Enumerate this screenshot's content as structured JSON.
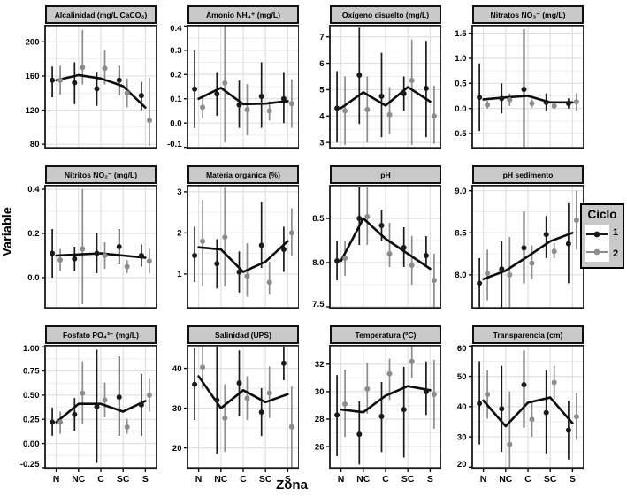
{
  "figure": {
    "background": "#ffffff",
    "strip_bg": "#c9c9c9",
    "grid_major_color": "#e0e0e0",
    "grid_minor_color": "#eeeeee",
    "panel_border_color": "#1a1a1a"
  },
  "chart_data": {
    "type": "faceted pointrange + line (means with error bars by zone and cycle)",
    "xlabel": "Zona",
    "ylabel": "Variable",
    "categories": [
      "N",
      "NC",
      "C",
      "SC",
      "S"
    ],
    "legend": {
      "title": "Ciclo",
      "position": "right",
      "items": [
        {
          "label": "1",
          "color": "#1a1a1a"
        },
        {
          "label": "2",
          "color": "#8c8c8c"
        }
      ]
    },
    "facets": [
      {
        "title": "Alcalinidad (mg/L CaCO₃)",
        "ylim": [
          75,
          220
        ],
        "yticks": [
          80,
          120,
          160,
          200
        ],
        "ytick_labels": [
          "80",
          "120",
          "160",
          "200"
        ],
        "series": [
          {
            "name": "1",
            "values": [
              155,
              152,
              145,
              155,
              137
            ],
            "lo": [
              135,
              127,
              125,
              137,
              120
            ],
            "hi": [
              171,
              176,
              165,
              172,
              153
            ]
          },
          {
            "name": "2",
            "values": [
              155,
              170,
              169,
              140,
              108
            ],
            "lo": [
              138,
              150,
              150,
              123,
              78
            ],
            "hi": [
              172,
              214,
              190,
              157,
              158
            ]
          }
        ],
        "line": [
          155,
          161,
          157,
          148,
          123
        ]
      },
      {
        "title": "Amonio NH₄⁺ (mg/L)",
        "ylim": [
          -0.105,
          0.405
        ],
        "yticks": [
          -0.1,
          0.0,
          0.1,
          0.2,
          0.3,
          0.4
        ],
        "ytick_labels": [
          "-0.1",
          "0.0",
          "0.1",
          "0.2",
          "0.3",
          "0.4"
        ],
        "series": [
          {
            "name": "1",
            "values": [
              0.14,
              0.12,
              0.075,
              0.11,
              0.1
            ],
            "lo": [
              -0.02,
              0.03,
              -0.02,
              -0.02,
              0.0
            ],
            "hi": [
              0.3,
              0.21,
              0.175,
              0.25,
              0.21
            ]
          },
          {
            "name": "2",
            "values": [
              0.065,
              0.165,
              0.055,
              0.05,
              0.08
            ],
            "lo": [
              0.02,
              -0.08,
              -0.05,
              0.01,
              -0.02
            ],
            "hi": [
              0.11,
              0.41,
              0.16,
              0.09,
              0.18
            ]
          }
        ],
        "line": [
          0.1,
          0.145,
          0.078,
          0.08,
          0.09
        ]
      },
      {
        "title": "Oxígeno disuelto (mg/L)",
        "ylim": [
          2.77,
          7.46
        ],
        "yticks": [
          3,
          4,
          5,
          6,
          7
        ],
        "ytick_labels": [
          "3",
          "4",
          "5",
          "6",
          "7"
        ],
        "series": [
          {
            "name": "1",
            "values": [
              4.3,
              5.55,
              4.75,
              4.85,
              5.05
            ],
            "lo": [
              3.0,
              3.7,
              3.2,
              4.2,
              3.2
            ],
            "hi": [
              5.7,
              7.35,
              6.4,
              5.5,
              6.85
            ]
          },
          {
            "name": "2",
            "values": [
              4.2,
              4.25,
              4.05,
              5.35,
              4.0
            ],
            "lo": [
              2.9,
              3.0,
              3.3,
              2.9,
              2.95
            ],
            "hi": [
              5.5,
              5.5,
              5.1,
              6.9,
              5.15
            ]
          }
        ],
        "line": [
          4.3,
          4.9,
          4.4,
          5.1,
          4.55
        ]
      },
      {
        "title": "Nitratos NO₃⁻ (mg/L)",
        "ylim": [
          -0.8,
          1.67
        ],
        "yticks": [
          -0.5,
          0.0,
          0.5,
          1.0,
          1.5
        ],
        "ytick_labels": [
          "-0.5",
          "0.0",
          "0.5",
          "1.0",
          "1.5"
        ],
        "series": [
          {
            "name": "1",
            "values": [
              0.22,
              0.2,
              0.38,
              0.12,
              0.1
            ],
            "lo": [
              -0.45,
              -0.1,
              -0.78,
              -0.05,
              0.0
            ],
            "hi": [
              0.9,
              0.5,
              1.58,
              0.3,
              0.2
            ]
          },
          {
            "name": "2",
            "values": [
              0.07,
              0.17,
              0.1,
              0.05,
              0.13
            ],
            "lo": [
              0.0,
              0.05,
              0.02,
              0.0,
              -0.05
            ],
            "hi": [
              0.15,
              0.3,
              0.18,
              0.1,
              0.3
            ]
          }
        ],
        "line": [
          0.18,
          0.22,
          0.25,
          0.12,
          0.12
        ]
      },
      {
        "title": "Nitritos NO₂⁻ (mg/L)",
        "ylim": [
          -0.14,
          0.42
        ],
        "yticks": [
          0.0,
          0.2,
          0.4
        ],
        "ytick_labels": [
          "0.0",
          "0.2",
          "0.4"
        ],
        "series": [
          {
            "name": "1",
            "values": [
              0.11,
              0.085,
              0.11,
              0.14,
              0.1
            ],
            "lo": [
              0.0,
              0.03,
              0.02,
              0.06,
              0.05
            ],
            "hi": [
              0.22,
              0.14,
              0.2,
              0.22,
              0.15
            ]
          },
          {
            "name": "2",
            "values": [
              0.08,
              0.13,
              0.1,
              0.05,
              0.075
            ],
            "lo": [
              0.03,
              -0.12,
              0.04,
              0.02,
              0.02
            ],
            "hi": [
              0.13,
              0.4,
              0.16,
              0.08,
              0.13
            ]
          }
        ],
        "line": [
          0.1,
          0.105,
          0.11,
          0.1,
          0.09
        ]
      },
      {
        "title": "Materia orgánica (%)",
        "ylim": [
          0.16,
          3.17
        ],
        "yticks": [
          1,
          2,
          3
        ],
        "ytick_labels": [
          "1",
          "2",
          "3"
        ],
        "series": [
          {
            "name": "1",
            "values": [
              1.45,
              1.25,
              1.05,
              1.7,
              1.6
            ],
            "lo": [
              0.8,
              0.65,
              0.55,
              1.15,
              1.05
            ],
            "hi": [
              2.15,
              1.85,
              1.55,
              2.75,
              2.15
            ]
          },
          {
            "name": "2",
            "values": [
              1.8,
              1.9,
              0.95,
              0.8,
              2.0
            ],
            "lo": [
              0.7,
              0.7,
              0.45,
              0.5,
              1.45
            ],
            "hi": [
              2.8,
              3.1,
              1.75,
              1.3,
              2.6
            ]
          }
        ],
        "line": [
          1.65,
          1.6,
          1.05,
          1.3,
          1.8
        ]
      },
      {
        "title": "pH",
        "ylim": [
          7.48,
          8.88
        ],
        "yticks": [
          7.5,
          8.0,
          8.5
        ],
        "ytick_labels": [
          "7.5",
          "8.0",
          "8.5"
        ],
        "series": [
          {
            "name": "1",
            "values": [
              8.02,
              8.5,
              8.42,
              8.17,
              8.08
            ],
            "lo": [
              7.8,
              8.2,
              8.25,
              7.95,
              7.95
            ],
            "hi": [
              8.25,
              8.85,
              8.6,
              8.4,
              8.3
            ]
          },
          {
            "name": "2",
            "values": [
              8.05,
              8.52,
              8.1,
              7.97,
              7.8
            ],
            "lo": [
              7.85,
              8.2,
              7.95,
              7.75,
              7.45
            ],
            "hi": [
              8.25,
              8.85,
              8.45,
              8.3,
              8.1
            ]
          }
        ],
        "line": [
          8.02,
          8.5,
          8.27,
          8.1,
          7.93
        ]
      },
      {
        "title": "pH sedimento",
        "ylim": [
          7.6,
          9.07
        ],
        "yticks": [
          8.0,
          8.5,
          9.0
        ],
        "ytick_labels": [
          "8.0",
          "8.5",
          "9.0"
        ],
        "series": [
          {
            "name": "1",
            "values": [
              7.9,
              8.07,
              8.32,
              8.48,
              8.37
            ],
            "lo": [
              7.55,
              7.6,
              7.9,
              8.2,
              7.9
            ],
            "hi": [
              8.2,
              8.4,
              8.75,
              8.7,
              8.85
            ]
          },
          {
            "name": "2",
            "values": [
              8.02,
              8.0,
              8.14,
              8.28,
              8.65
            ],
            "lo": [
              7.7,
              7.55,
              7.95,
              8.2,
              8.3
            ],
            "hi": [
              8.3,
              8.45,
              8.35,
              8.38,
              9.0
            ]
          }
        ],
        "line": [
          7.95,
          8.05,
          8.22,
          8.4,
          8.5
        ]
      },
      {
        "title": "Fosfato PO₄³⁻ (mg/L)",
        "ylim": [
          -0.26,
          1.02
        ],
        "yticks": [
          -0.25,
          0.0,
          0.25,
          0.5,
          0.75,
          1.0
        ],
        "ytick_labels": [
          "-0.25",
          "0.00",
          "0.25",
          "0.50",
          "0.75",
          "1.00"
        ],
        "series": [
          {
            "name": "1",
            "values": [
              0.22,
              0.3,
              0.38,
              0.48,
              0.4
            ],
            "lo": [
              0.08,
              0.13,
              -0.2,
              0.08,
              0.08
            ],
            "hi": [
              0.37,
              0.47,
              0.97,
              0.9,
              0.72
            ]
          },
          {
            "name": "2",
            "values": [
              0.22,
              0.52,
              0.45,
              0.17,
              0.5
            ],
            "lo": [
              0.1,
              0.2,
              0.27,
              0.1,
              0.33
            ],
            "hi": [
              0.33,
              0.85,
              0.63,
              0.25,
              0.67
            ]
          }
        ],
        "line": [
          0.22,
          0.41,
          0.41,
          0.33,
          0.44
        ]
      },
      {
        "title": "Salinidad (UPS)",
        "ylim": [
          14.8,
          45.9
        ],
        "yticks": [
          20,
          30,
          40
        ],
        "ytick_labels": [
          "20",
          "30",
          "40"
        ],
        "series": [
          {
            "name": "1",
            "values": [
              36.0,
              32.0,
              36.3,
              29.0,
              41.3
            ],
            "lo": [
              27.0,
              18.5,
              28.0,
              23.0,
              37.0
            ],
            "hi": [
              45.0,
              45.5,
              44.5,
              35.0,
              45.5
            ]
          },
          {
            "name": "2",
            "values": [
              40.3,
              27.5,
              32.5,
              33.8,
              25.3
            ],
            "lo": [
              35.0,
              19.0,
              27.0,
              27.5,
              15.0
            ],
            "hi": [
              45.5,
              36.0,
              38.0,
              40.5,
              35.5
            ]
          }
        ],
        "line": [
          38.0,
          30.0,
          34.5,
          31.5,
          33.5
        ]
      },
      {
        "title": "Temperatura (ºC)",
        "ylim": [
          24.4,
          33.4
        ],
        "yticks": [
          26,
          28,
          30,
          32
        ],
        "ytick_labels": [
          "26",
          "28",
          "30",
          "32"
        ],
        "series": [
          {
            "name": "1",
            "values": [
              28.3,
              26.9,
              28.2,
              28.7,
              30.0
            ],
            "lo": [
              25.3,
              24.7,
              25.6,
              25.2,
              28.3
            ],
            "hi": [
              31.2,
              29.3,
              30.7,
              31.8,
              32.2
            ]
          },
          {
            "name": "2",
            "values": [
              29.1,
              30.2,
              31.3,
              32.2,
              29.8
            ],
            "lo": [
              26.7,
              28.4,
              29.4,
              31.0,
              27.3
            ],
            "hi": [
              31.6,
              32.1,
              32.4,
              33.4,
              32.3
            ]
          }
        ],
        "line": [
          28.7,
          28.5,
          29.7,
          30.4,
          30.1
        ]
      },
      {
        "title": "Transparencia (cm)",
        "ylim": [
          19.5,
          60.4
        ],
        "yticks": [
          20,
          30,
          40,
          50,
          60
        ],
        "ytick_labels": [
          "20",
          "30",
          "40",
          "50",
          "60"
        ],
        "series": [
          {
            "name": "1",
            "values": [
              41.0,
              39.3,
              47.2,
              38.0,
              32.2
            ],
            "lo": [
              27.5,
              25.0,
              33.0,
              24.5,
              22.5
            ],
            "hi": [
              55.0,
              53.5,
              58.5,
              52.0,
              42.0
            ]
          },
          {
            "name": "2",
            "values": [
              44.0,
              27.5,
              35.8,
              48.0,
              36.7
            ],
            "lo": [
              36.0,
              20.0,
              30.0,
              42.5,
              29.0
            ],
            "hi": [
              52.0,
              45.0,
              41.5,
              53.5,
              44.5
            ]
          }
        ],
        "line": [
          42.0,
          33.5,
          41.3,
          43.0,
          34.5
        ]
      }
    ]
  }
}
